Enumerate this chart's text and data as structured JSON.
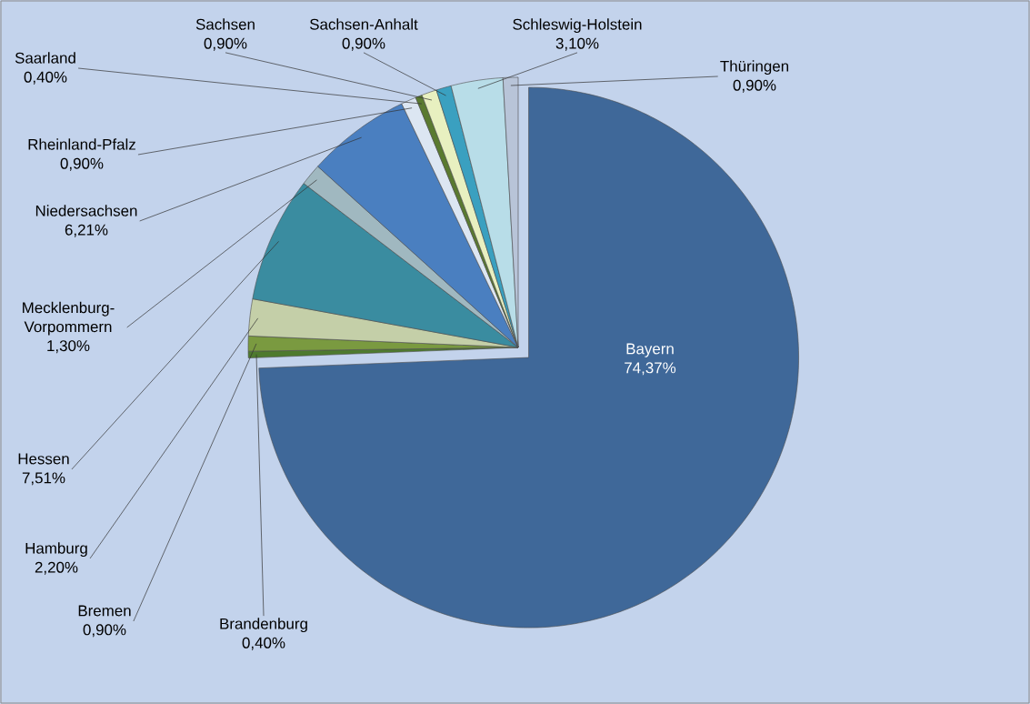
{
  "chart_data": {
    "type": "pie",
    "categories": [
      "Bayern",
      "Brandenburg",
      "Bremen",
      "Hamburg",
      "Hessen",
      "Mecklenburg-Vorpommern",
      "Niedersachsen",
      "Rheinland-Pfalz",
      "Saarland",
      "Sachsen",
      "Sachsen-Anhalt",
      "Schleswig-Holstein",
      "Thüringen"
    ],
    "values": [
      74.37,
      0.4,
      0.9,
      2.2,
      7.51,
      1.3,
      6.21,
      0.9,
      0.4,
      0.9,
      0.9,
      3.1,
      0.9
    ],
    "value_labels": [
      "74,37%",
      "0,40%",
      "0,90%",
      "2,20%",
      "7,51%",
      "1,30%",
      "6,21%",
      "0,90%",
      "0,40%",
      "0,90%",
      "0,90%",
      "3,10%",
      "0,90%"
    ],
    "colors": [
      "#3f6899",
      "#4e7a2e",
      "#7a9a40",
      "#c4cfa8",
      "#3a8ca0",
      "#a0b8c0",
      "#4a7fc0",
      "#dce6f2",
      "#5a7a30",
      "#e8f0c0",
      "#3aa0c0",
      "#b8dde8",
      "#b8c4d8"
    ]
  }
}
